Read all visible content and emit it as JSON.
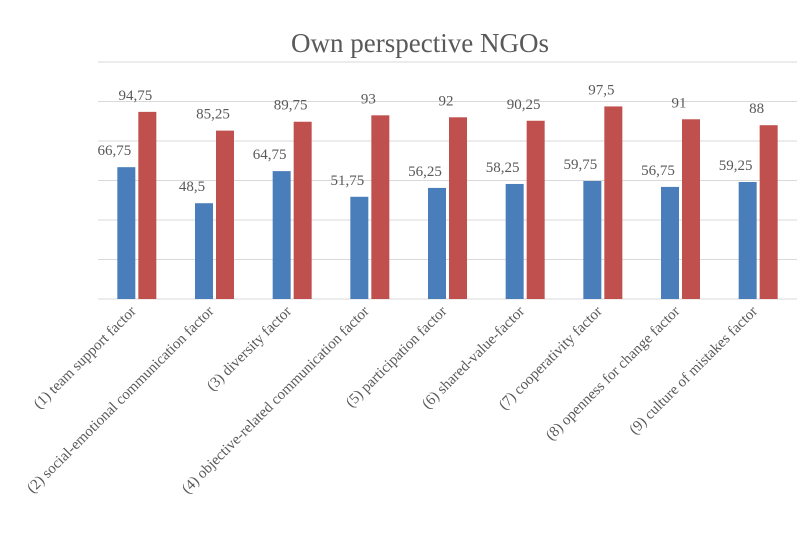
{
  "chart_data": {
    "type": "bar",
    "title": "Own perspective NGOs",
    "categories": [
      "(1) team support factor",
      "(2) social-emotional communication factor",
      "(3) diversity factor",
      "(4) objective-related communication factor",
      "(5) participation factor",
      "(6) shared-value-factor",
      "(7) cooperativity factor",
      "(8) openness for change factor",
      "(9) culture of mistakes factor"
    ],
    "series": [
      {
        "color": "#4a7ebb",
        "values": [
          66.75,
          48.5,
          64.75,
          51.75,
          56.25,
          58.25,
          59.75,
          56.75,
          59.25
        ],
        "value_labels": [
          "66,75",
          "48,5",
          "64,75",
          "51,75",
          "56,25",
          "58,25",
          "59,75",
          "56,75",
          "59,25"
        ]
      },
      {
        "color": "#c0504d",
        "values": [
          94.75,
          85.25,
          89.75,
          93,
          92,
          90.25,
          97.5,
          91,
          88
        ],
        "value_labels": [
          "94,75",
          "85,25",
          "89,75",
          "93",
          "92",
          "90,25",
          "97,5",
          "91",
          "88"
        ]
      }
    ],
    "ylim": [
      0,
      120
    ],
    "yticks": [
      0,
      20,
      40,
      60,
      80,
      100,
      120
    ],
    "grid": true
  }
}
